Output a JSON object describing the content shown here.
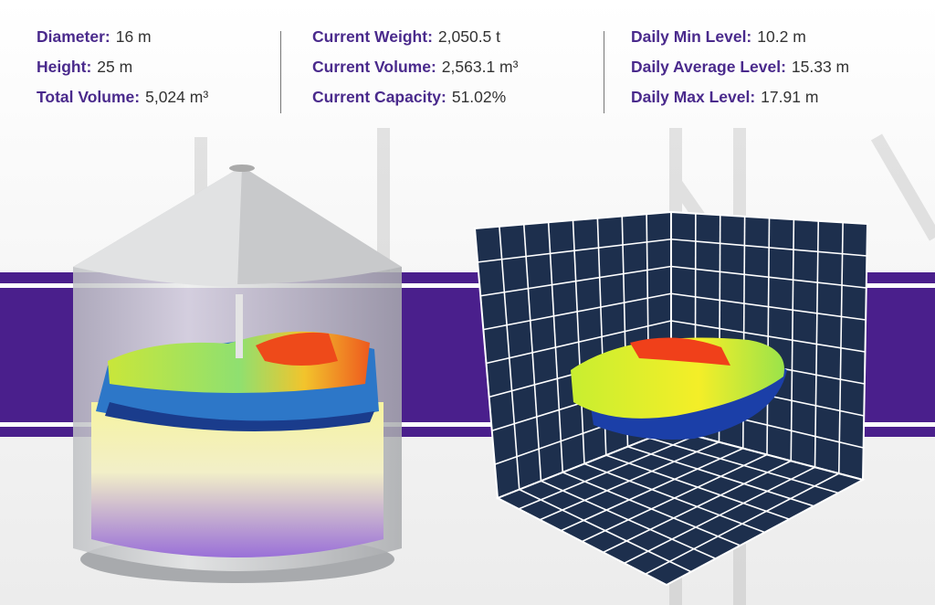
{
  "stats": [
    {
      "items": [
        {
          "label": "Diameter:",
          "value": "16 m"
        },
        {
          "label": "Height:",
          "value": "25 m"
        },
        {
          "label": "Total Volume:",
          "value": "5,024 m³"
        }
      ]
    },
    {
      "items": [
        {
          "label": "Current Weight:",
          "value": "2,050.5 t"
        },
        {
          "label": "Current Volume:",
          "value": "2,563.1 m³"
        },
        {
          "label": "Current Capacity:",
          "value": "51.02%"
        }
      ]
    },
    {
      "items": [
        {
          "label": "Daily Min Level:",
          "value": "10.2 m"
        },
        {
          "label": "Daily Average Level:",
          "value": "15.33 m"
        },
        {
          "label": "Daily Max Level:",
          "value": "17.91 m"
        }
      ]
    }
  ]
}
